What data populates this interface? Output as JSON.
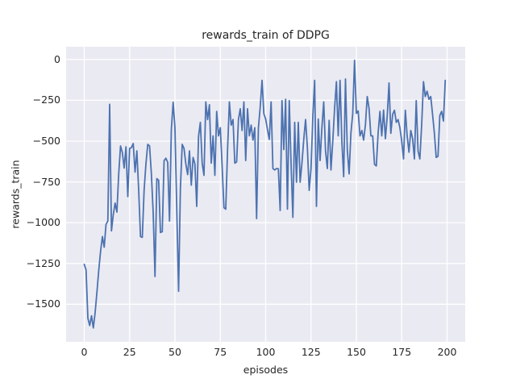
{
  "figure": {
    "title": "rewards_train of DDPG",
    "xlabel": "episodes",
    "ylabel": "rewards_train"
  },
  "chart_data": {
    "type": "line",
    "title": "rewards_train of DDPG",
    "xlabel": "episodes",
    "ylabel": "rewards_train",
    "grid": true,
    "legend_position": "none",
    "xlim": [
      -10,
      210
    ],
    "ylim": [
      -1730,
      78
    ],
    "xticks": {
      "values": [
        0,
        25,
        50,
        75,
        100,
        125,
        150,
        175,
        200
      ],
      "labels": [
        "0",
        "25",
        "50",
        "75",
        "100",
        "125",
        "150",
        "175",
        "200"
      ]
    },
    "yticks": {
      "values": [
        0,
        -250,
        -500,
        -750,
        -1000,
        -1250,
        -1500
      ],
      "labels": [
        "0",
        "−250",
        "−500",
        "−750",
        "−1000",
        "−1250",
        "−1500"
      ]
    },
    "colors": {
      "figure_bg": "#ffffff",
      "plot_bg": "#eaeaf2",
      "grid": "#ffffff",
      "line": "#4c72b0",
      "text": "#262626"
    },
    "x_start": 0,
    "x_step": 1,
    "series": [
      {
        "name": "rewards_train",
        "color": "#4c72b0",
        "values": [
          -1255,
          -1290,
          -1585,
          -1630,
          -1570,
          -1645,
          -1550,
          -1425,
          -1290,
          -1175,
          -1085,
          -1150,
          -1010,
          -990,
          -275,
          -1050,
          -950,
          -880,
          -935,
          -700,
          -530,
          -570,
          -665,
          -535,
          -840,
          -545,
          -540,
          -515,
          -690,
          -560,
          -800,
          -1085,
          -1090,
          -800,
          -640,
          -520,
          -530,
          -700,
          -940,
          -1330,
          -730,
          -740,
          -1060,
          -1055,
          -620,
          -605,
          -630,
          -990,
          -430,
          -262,
          -420,
          -920,
          -1420,
          -790,
          -520,
          -545,
          -640,
          -705,
          -560,
          -770,
          -600,
          -640,
          -900,
          -470,
          -385,
          -635,
          -710,
          -260,
          -368,
          -277,
          -635,
          -468,
          -710,
          -318,
          -468,
          -418,
          -652,
          -908,
          -917,
          -552,
          -260,
          -402,
          -368,
          -635,
          -627,
          -368,
          -302,
          -435,
          -260,
          -619,
          -302,
          -468,
          -402,
          -494,
          -418,
          -975,
          -420,
          -290,
          -128,
          -332,
          -365,
          -430,
          -490,
          -260,
          -668,
          -677,
          -668,
          -670,
          -925,
          -252,
          -552,
          -244,
          -917,
          -252,
          -635,
          -967,
          -385,
          -752,
          -385,
          -752,
          -635,
          -490,
          -368,
          -540,
          -802,
          -668,
          -350,
          -128,
          -900,
          -365,
          -619,
          -418,
          -260,
          -560,
          -668,
          -373,
          -677,
          -500,
          -300,
          -136,
          -468,
          -128,
          -500,
          -718,
          -120,
          -552,
          -701,
          -450,
          -332,
          -5,
          -330,
          -315,
          -468,
          -435,
          -494,
          -400,
          -227,
          -300,
          -468,
          -468,
          -643,
          -652,
          -450,
          -318,
          -468,
          -310,
          -485,
          -350,
          -144,
          -452,
          -336,
          -311,
          -385,
          -368,
          -418,
          -500,
          -609,
          -311,
          -468,
          -568,
          -435,
          -485,
          -609,
          -252,
          -560,
          -609,
          -400,
          -136,
          -227,
          -194,
          -244,
          -227,
          -336,
          -450,
          -600,
          -593,
          -343,
          -318,
          -377,
          -128
        ]
      }
    ]
  }
}
